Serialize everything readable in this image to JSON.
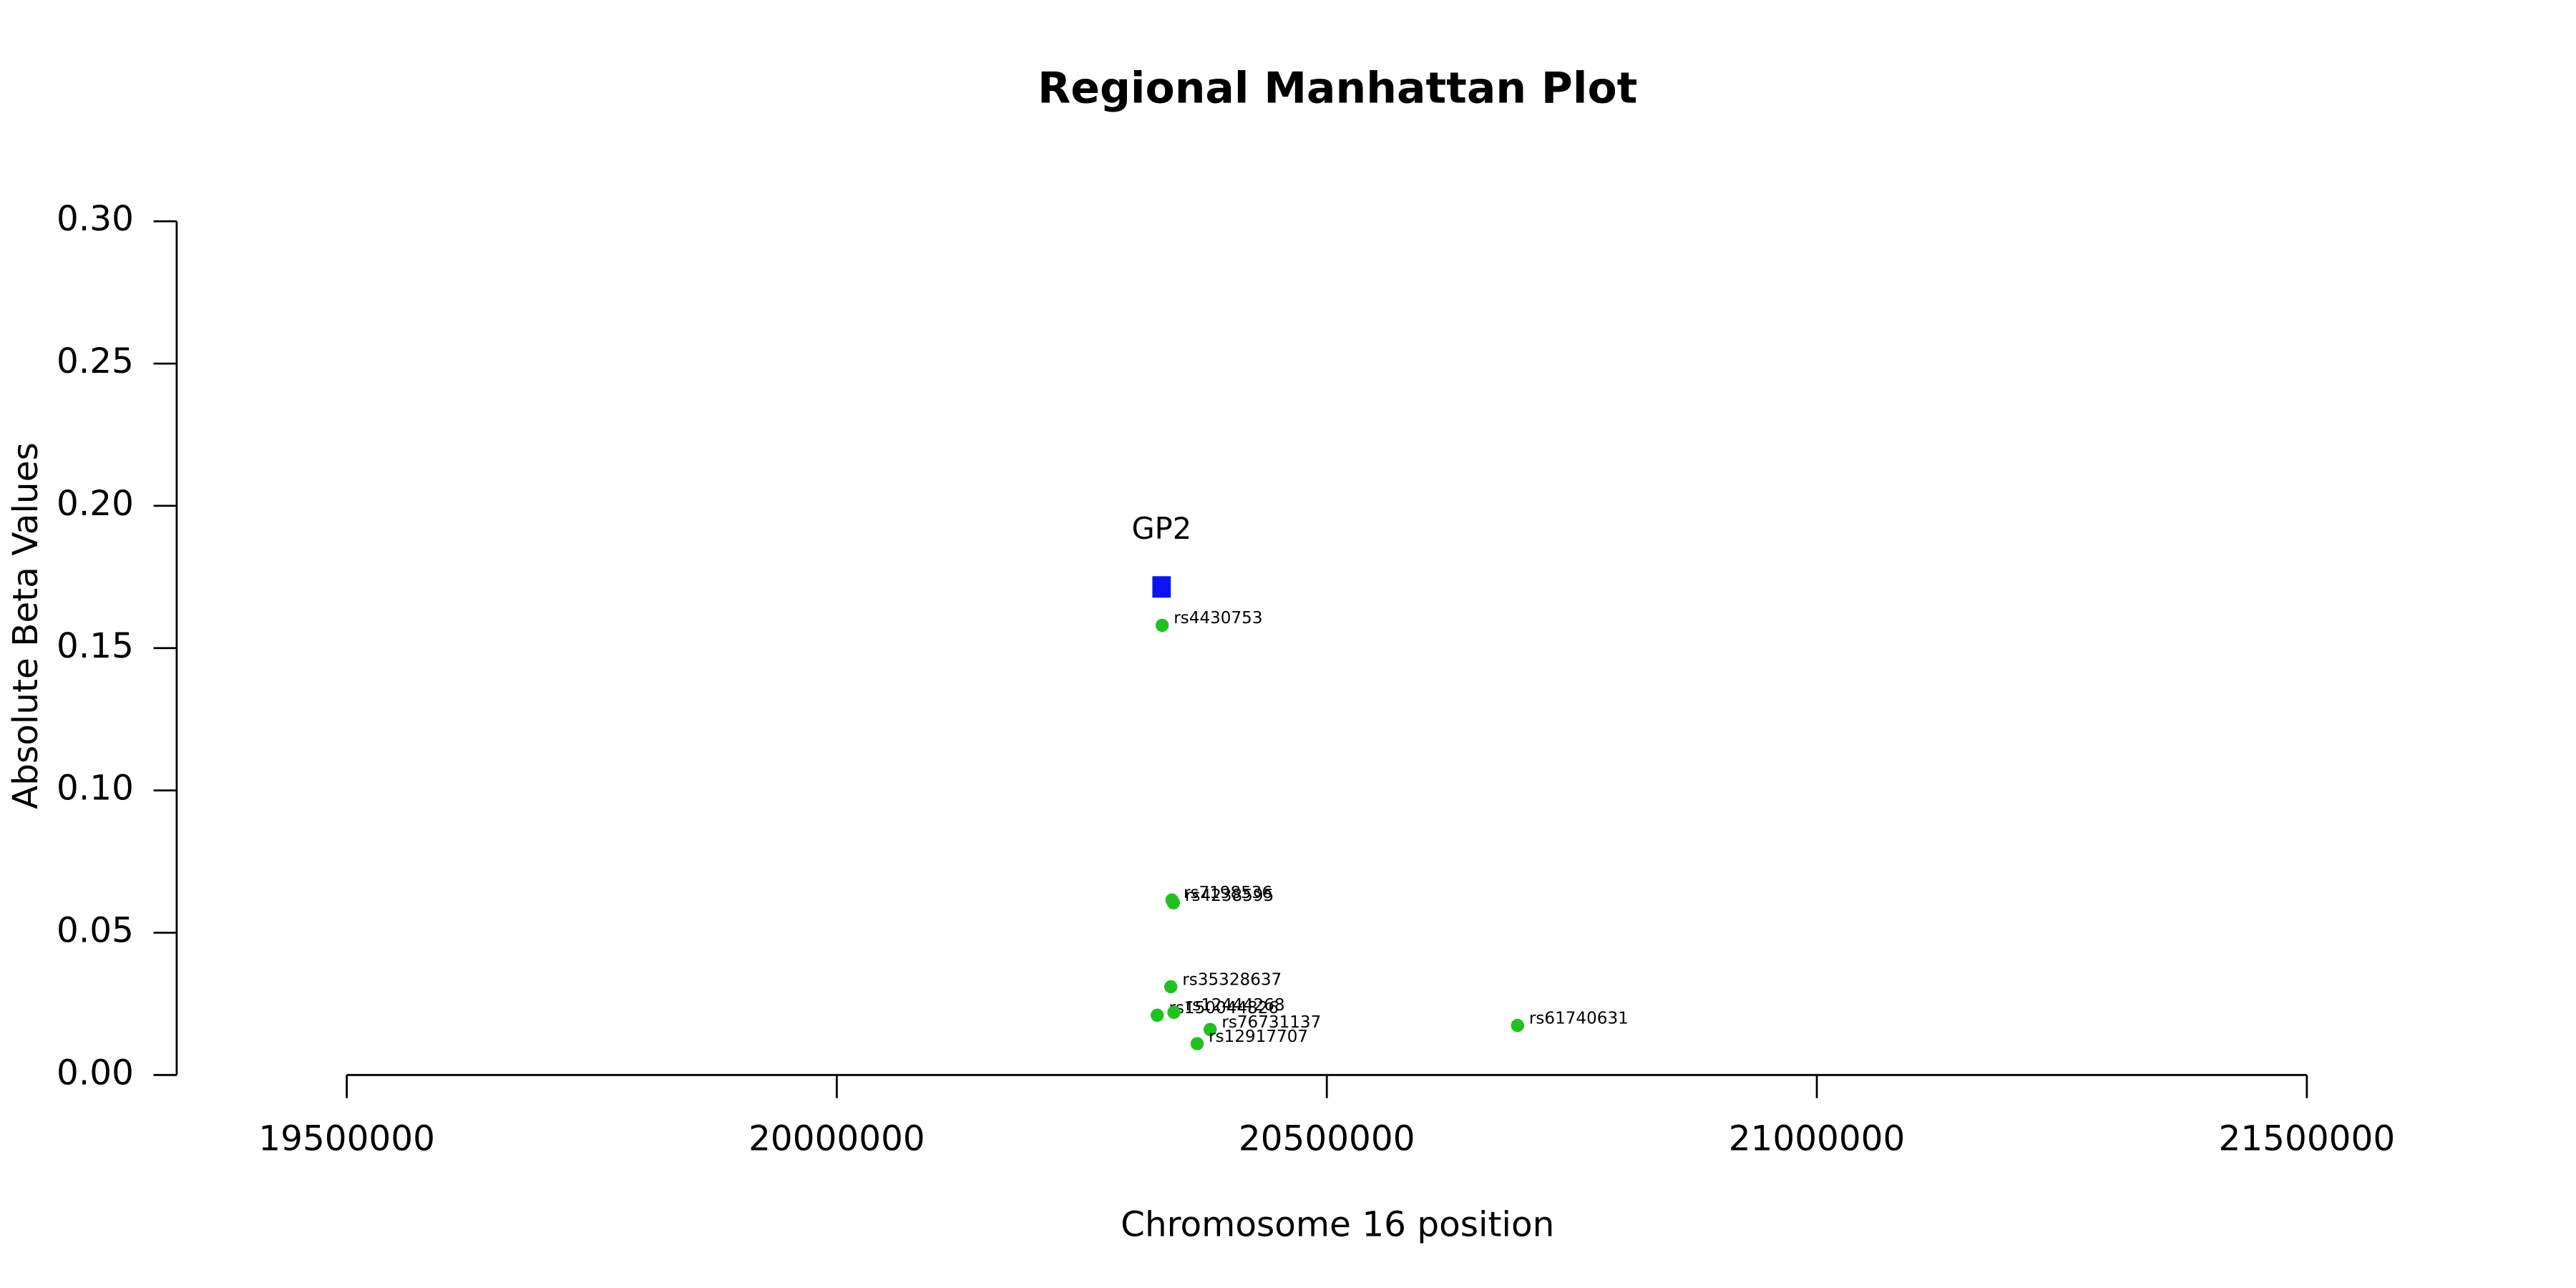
{
  "chart_data": {
    "type": "scatter",
    "title": "Regional Manhattan Plot",
    "xlabel": "Chromosome 16 position",
    "ylabel": "Absolute Beta Values",
    "xlim": [
      19500000,
      21500000
    ],
    "ylim": [
      0,
      0.3
    ],
    "xticks": [
      19500000,
      20000000,
      20500000,
      21000000,
      21500000
    ],
    "yticks": [
      {
        "value": 0,
        "label": "0.00"
      },
      {
        "value": 0.05,
        "label": "0.05"
      },
      {
        "value": 0.1,
        "label": "0.10"
      },
      {
        "value": 0.15,
        "label": "0.15"
      },
      {
        "value": 0.2,
        "label": "0.20"
      },
      {
        "value": 0.25,
        "label": "0.25"
      },
      {
        "value": 0.3,
        "label": "0.30"
      }
    ],
    "color": "#1fc21f",
    "labels": [
      "rs4430753",
      "rs7198536",
      "rs4238595",
      "rs35328637",
      "rs150044826",
      "rs12444268",
      "rs76731137",
      "rs12917707",
      "rs61740631"
    ],
    "x": [
      20332000,
      20342000,
      20343500,
      20340800,
      20327000,
      20344000,
      20381000,
      20367700,
      20694600
    ],
    "values": [
      0.158,
      0.0615,
      0.0605,
      0.031,
      0.021,
      0.022,
      0.016,
      0.011,
      0.0174
    ],
    "genes": [
      {
        "label": "GP2",
        "start": 20322000,
        "end": 20340800,
        "value": 0.1715,
        "color": "#0a14f0"
      }
    ]
  }
}
